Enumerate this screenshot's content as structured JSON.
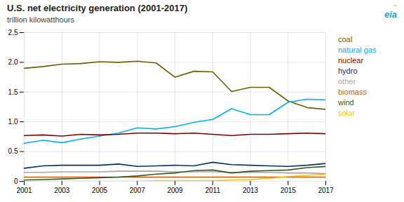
{
  "chart_data": {
    "type": "line",
    "title": "U.S. net electricity generation (2001-2017)",
    "subtitle": "trillion kilowatthours",
    "x": [
      2001,
      2002,
      2003,
      2004,
      2005,
      2006,
      2007,
      2008,
      2009,
      2010,
      2011,
      2012,
      2013,
      2014,
      2015,
      2016,
      2017
    ],
    "series": [
      {
        "name": "coal",
        "color": "#6b6000",
        "values": [
          1.9,
          1.93,
          1.97,
          1.98,
          2.01,
          2.0,
          2.02,
          1.99,
          1.75,
          1.85,
          1.84,
          1.51,
          1.58,
          1.58,
          1.35,
          1.24,
          1.21
        ]
      },
      {
        "name": "natural gas",
        "color": "#00b0f0",
        "values": [
          0.64,
          0.69,
          0.65,
          0.71,
          0.76,
          0.81,
          0.9,
          0.88,
          0.92,
          0.99,
          1.04,
          1.22,
          1.12,
          1.12,
          1.33,
          1.38,
          1.37
        ]
      },
      {
        "name": "nuclear",
        "color": "#7f0000",
        "values": [
          0.77,
          0.78,
          0.76,
          0.79,
          0.78,
          0.79,
          0.81,
          0.81,
          0.8,
          0.81,
          0.79,
          0.77,
          0.79,
          0.79,
          0.8,
          0.81,
          0.8
        ]
      },
      {
        "name": "hydro",
        "color": "#003366",
        "values": [
          0.22,
          0.26,
          0.27,
          0.27,
          0.27,
          0.29,
          0.25,
          0.26,
          0.27,
          0.26,
          0.32,
          0.28,
          0.27,
          0.26,
          0.25,
          0.27,
          0.3
        ]
      },
      {
        "name": "other",
        "color": "#a5a5a5",
        "values": [
          0.15,
          0.15,
          0.16,
          0.16,
          0.16,
          0.17,
          0.17,
          0.17,
          0.16,
          0.16,
          0.16,
          0.15,
          0.15,
          0.15,
          0.14,
          0.14,
          0.13
        ]
      },
      {
        "name": "biomass",
        "color": "#c55a11",
        "values": [
          0.07,
          0.07,
          0.07,
          0.07,
          0.07,
          0.07,
          0.07,
          0.07,
          0.07,
          0.07,
          0.07,
          0.07,
          0.07,
          0.07,
          0.07,
          0.07,
          0.07
        ]
      },
      {
        "name": "wind",
        "color": "#375623",
        "values": [
          0.02,
          0.03,
          0.04,
          0.05,
          0.06,
          0.07,
          0.09,
          0.12,
          0.14,
          0.18,
          0.19,
          0.14,
          0.17,
          0.18,
          0.19,
          0.23,
          0.25
        ]
      },
      {
        "name": "solar",
        "color": "#ffc000",
        "values": [
          0.0,
          0.0,
          0.0,
          0.0,
          0.0,
          0.0,
          0.0,
          0.01,
          0.01,
          0.01,
          0.01,
          0.02,
          0.03,
          0.05,
          0.08,
          0.1,
          0.12
        ]
      }
    ],
    "xlim": [
      2001,
      2017
    ],
    "ylim": [
      0,
      2.5
    ],
    "xticks": [
      2001,
      2003,
      2005,
      2007,
      2009,
      2011,
      2013,
      2015,
      2017
    ],
    "yticks": [
      0,
      0.5,
      {
        "value": 1,
        "label": "1.0"
      },
      1.5,
      {
        "value": 2,
        "label": "2.0"
      },
      2.5
    ],
    "grid": true,
    "legend": "right",
    "annotations": [
      "~",
      "eia"
    ]
  }
}
